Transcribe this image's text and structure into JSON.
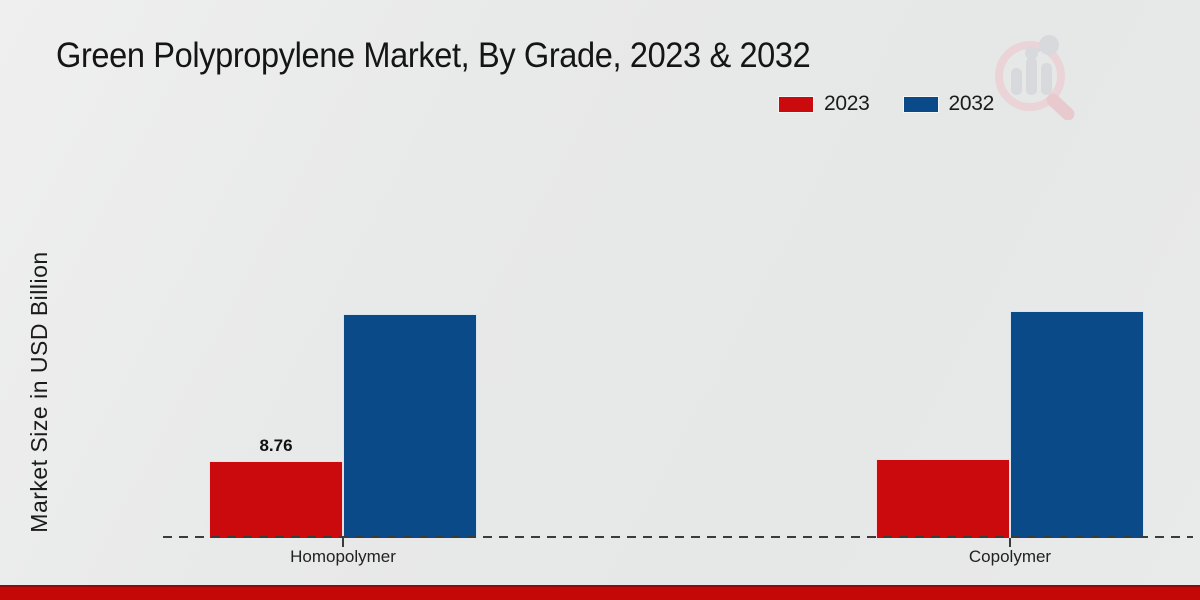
{
  "header": {
    "title": "Green Polypropylene Market, By Grade, 2023 & 2032"
  },
  "chart_data": {
    "type": "bar",
    "title": "Green Polypropylene Market, By Grade, 2023 & 2032",
    "categories": [
      "Homopolymer",
      "Copolymer"
    ],
    "series": [
      {
        "name": "2023",
        "color": "#cb0a0e",
        "values": [
          8.76,
          9.0
        ]
      },
      {
        "name": "2032",
        "color": "#0b4a88",
        "values": [
          25.4,
          25.8
        ]
      }
    ],
    "data_labels": [
      {
        "series": "2023",
        "category": "Homopolymer",
        "text": "8.76"
      }
    ],
    "xlabel": "",
    "ylabel": "Market Size in USD Billion",
    "ylim": [
      0,
      30
    ],
    "y_axis_ticks_visible": false,
    "grid": false,
    "legend_position": "top-right",
    "baseline_style": "dashed"
  },
  "branding": {
    "logo": "magnifier-bar-chart-logo",
    "logo_colors": {
      "ring": "#edd0d4",
      "bars": "#d4d6db",
      "accent": "#e9c4c9"
    },
    "footer_bar_color": "#c40707"
  }
}
